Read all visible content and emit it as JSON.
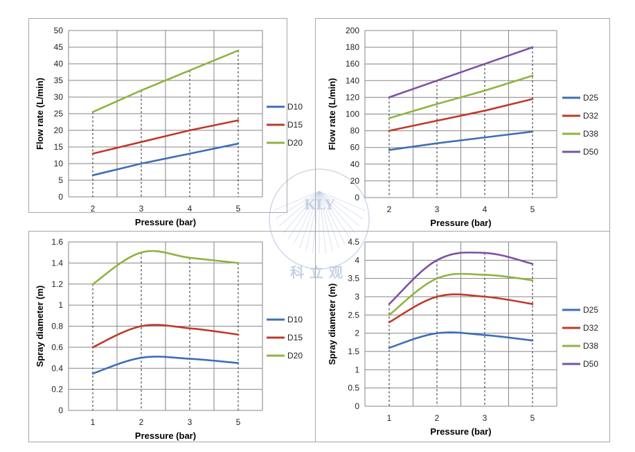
{
  "watermark": {
    "text": "科立观",
    "logo_letters": "KLY",
    "color": "#b9c7df"
  },
  "series_colors": {
    "D10": "#3d6fb6",
    "D15": "#c0392b",
    "D20": "#8db43f",
    "D25": "#3d6fb6",
    "D32": "#c0392b",
    "D38": "#8db43f",
    "D50": "#7b52a3"
  },
  "chart_data": [
    {
      "type": "line",
      "xlabel": "Pressure (bar)",
      "ylabel": "Flow rate  (L/min)",
      "categories": [
        "2",
        "3",
        "4",
        "5"
      ],
      "ylim": [
        0,
        50
      ],
      "y_ticks": [
        "0",
        "5",
        "10",
        "15",
        "20",
        "25",
        "30",
        "35",
        "40",
        "45",
        "50"
      ],
      "grid": true,
      "legend_position": "right",
      "smooth": false,
      "series": [
        {
          "name": "D10",
          "values": [
            6.5,
            10,
            13,
            16
          ]
        },
        {
          "name": "D15",
          "values": [
            13,
            16.5,
            20,
            23
          ]
        },
        {
          "name": "D20",
          "values": [
            25.5,
            32,
            38,
            44
          ]
        }
      ]
    },
    {
      "type": "line",
      "xlabel": "Pressure (bar)",
      "ylabel": "Flow rate (L/min)",
      "categories": [
        "2",
        "3",
        "4",
        "5"
      ],
      "ylim": [
        0,
        200
      ],
      "y_ticks": [
        "0",
        "20",
        "40",
        "60",
        "80",
        "100",
        "120",
        "140",
        "160",
        "180",
        "200"
      ],
      "grid": true,
      "legend_position": "right",
      "smooth": false,
      "series": [
        {
          "name": "D25",
          "values": [
            57,
            65,
            72,
            79
          ]
        },
        {
          "name": "D32",
          "values": [
            80,
            92,
            104,
            118
          ]
        },
        {
          "name": "D38",
          "values": [
            95,
            112,
            128,
            146
          ]
        },
        {
          "name": "D50",
          "values": [
            120,
            140,
            160,
            180
          ]
        }
      ]
    },
    {
      "type": "line",
      "xlabel": "Pressure (bar)",
      "ylabel": "Spray diameter (m)",
      "categories": [
        "1",
        "2",
        "3",
        "5"
      ],
      "ylim": [
        0,
        1.6
      ],
      "y_ticks": [
        "0",
        "0.2",
        "0.4",
        "0.6",
        "0.8",
        "1",
        "1.2",
        "1.4",
        "1.6"
      ],
      "grid": true,
      "legend_position": "right",
      "smooth": true,
      "series": [
        {
          "name": "D10",
          "values": [
            0.35,
            0.5,
            0.49,
            0.45
          ]
        },
        {
          "name": "D15",
          "values": [
            0.6,
            0.8,
            0.78,
            0.72
          ]
        },
        {
          "name": "D20",
          "values": [
            1.2,
            1.5,
            1.45,
            1.4
          ]
        }
      ]
    },
    {
      "type": "line",
      "xlabel": "Pressure (bar)",
      "ylabel": "Spray diameter (m)",
      "categories": [
        "1",
        "2",
        "3",
        "5"
      ],
      "ylim": [
        0,
        4.5
      ],
      "y_ticks": [
        "0",
        "0.5",
        "1",
        "1.5",
        "2",
        "2.5",
        "3",
        "3.5",
        "4",
        "4.5"
      ],
      "grid": true,
      "legend_position": "right",
      "smooth": true,
      "series": [
        {
          "name": "D25",
          "values": [
            1.6,
            2.0,
            1.95,
            1.8
          ]
        },
        {
          "name": "D32",
          "values": [
            2.3,
            3.0,
            3.0,
            2.8
          ]
        },
        {
          "name": "D38",
          "values": [
            2.5,
            3.5,
            3.6,
            3.45
          ]
        },
        {
          "name": "D50",
          "values": [
            2.8,
            4.0,
            4.2,
            3.9
          ]
        }
      ]
    }
  ]
}
